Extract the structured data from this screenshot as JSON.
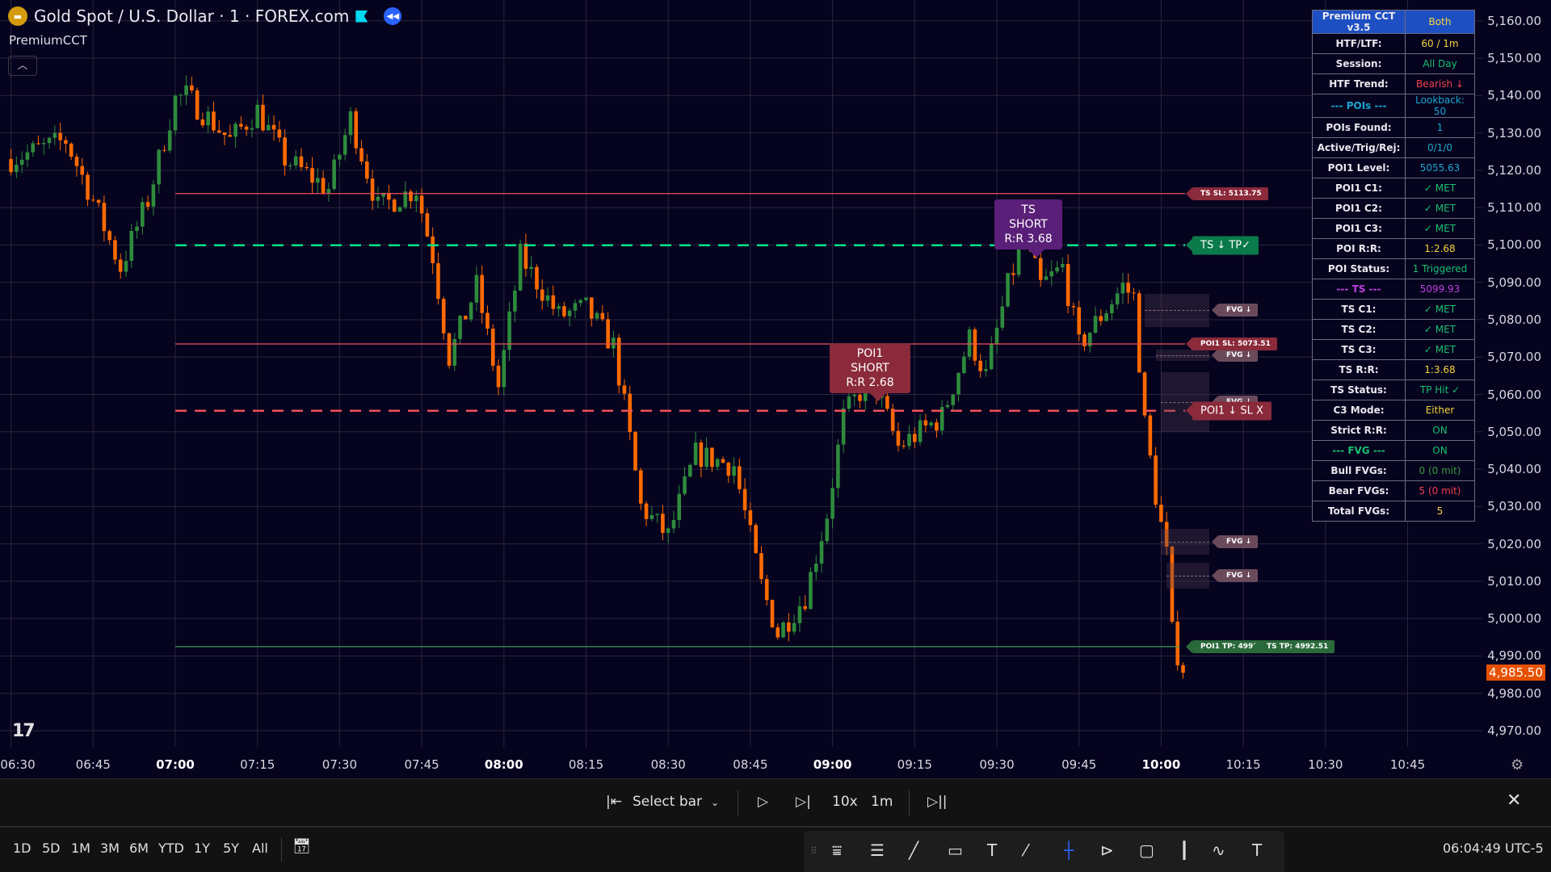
{
  "header": {
    "symbol": "Gold Spot / U.S. Dollar · 1 · FOREX.com",
    "indicator": "PremiumCCT",
    "logo": "TV"
  },
  "colors": {
    "bg": "#06031f",
    "bull": "#2e8b3c",
    "bear": "#ff6a00",
    "grid": "#28263f",
    "green": "#00e38a",
    "red": "#f0505a"
  },
  "price_axis": {
    "labels": [
      "5,160.00",
      "5,150.00",
      "5,140.00",
      "5,130.00",
      "5,120.00",
      "5,110.00",
      "5,100.00",
      "5,090.00",
      "5,080.00",
      "5,070.00",
      "5,060.00",
      "5,050.00",
      "5,040.00",
      "5,030.00",
      "5,020.00",
      "5,010.00",
      "5,000.00",
      "4,990.00",
      "4,980.00",
      "4,970.00"
    ],
    "values": [
      5160,
      5150,
      5140,
      5130,
      5120,
      5110,
      5100,
      5090,
      5080,
      5070,
      5060,
      5050,
      5040,
      5030,
      5020,
      5010,
      5000,
      4990,
      4980,
      4970
    ],
    "current_label": "4,985.50",
    "current": 4985.5
  },
  "time_axis": {
    "labels": [
      "06:30",
      "06:45",
      "07:00",
      "07:15",
      "07:30",
      "07:45",
      "08:00",
      "08:15",
      "08:30",
      "08:45",
      "09:00",
      "09:15",
      "09:30",
      "09:45",
      "10:00",
      "10:15",
      "10:30",
      "10:45"
    ],
    "bold": [
      "07:00",
      "08:00",
      "09:00",
      "10:00"
    ]
  },
  "chart_data": {
    "type": "candlestick",
    "anchors": [
      [
        "06:30",
        5123
      ],
      [
        "06:40",
        5128
      ],
      [
        "06:45",
        5112
      ],
      [
        "06:50",
        5094
      ],
      [
        "06:55",
        5112
      ],
      [
        "07:00",
        5139
      ],
      [
        "07:02",
        5140
      ],
      [
        "07:10",
        5128
      ],
      [
        "07:15",
        5136
      ],
      [
        "07:20",
        5123
      ],
      [
        "07:28",
        5115
      ],
      [
        "07:32",
        5134
      ],
      [
        "07:37",
        5110
      ],
      [
        "07:44",
        5115
      ],
      [
        "07:47",
        5097
      ],
      [
        "07:50",
        5070
      ],
      [
        "07:55",
        5089
      ],
      [
        "07:59",
        5062
      ],
      [
        "08:03",
        5097
      ],
      [
        "08:10",
        5081
      ],
      [
        "08:15",
        5083
      ],
      [
        "08:20",
        5073
      ],
      [
        "08:22",
        5057
      ],
      [
        "08:25",
        5030
      ],
      [
        "08:30",
        5022
      ],
      [
        "08:35",
        5044
      ],
      [
        "08:42",
        5041
      ],
      [
        "08:47",
        5009
      ],
      [
        "08:50",
        4996
      ],
      [
        "08:55",
        5006
      ],
      [
        "08:59",
        5028
      ],
      [
        "09:02",
        5054
      ],
      [
        "09:07",
        5065
      ],
      [
        "09:12",
        5046
      ],
      [
        "09:20",
        5054
      ],
      [
        "09:25",
        5075
      ],
      [
        "09:28",
        5065
      ],
      [
        "09:32",
        5089
      ],
      [
        "09:35",
        5102
      ],
      [
        "09:38",
        5089
      ],
      [
        "09:42",
        5094
      ],
      [
        "09:45",
        5073
      ],
      [
        "09:50",
        5083
      ],
      [
        "09:53",
        5089
      ],
      [
        "09:55",
        5086
      ],
      [
        "09:57",
        5052
      ],
      [
        "09:59",
        5033
      ],
      [
        "10:01",
        5017
      ],
      [
        "10:02",
        4996
      ],
      [
        "10:04",
        4985.5
      ]
    ]
  },
  "levels": [
    {
      "name": "ts-sl-line",
      "label": "TS SL: 5113.75",
      "price": 5113.75,
      "color": "#f0505a",
      "style": "solid",
      "big": false
    },
    {
      "name": "ts-tp-line",
      "label": "TS ↓ TP✓",
      "price": 5099.93,
      "color": "#00e38a",
      "style": "dashed",
      "big": true,
      "tagcolor": "#0a7a4a"
    },
    {
      "name": "poi1-sl-line",
      "label": "POI1 SL: 5073.51",
      "price": 5073.51,
      "color": "#f0505a",
      "style": "solid",
      "big": false
    },
    {
      "name": "poi1-entry-line",
      "label": "POI1 ↓ SL X",
      "price": 5055.63,
      "color": "#f0505a",
      "style": "dashed",
      "big": true,
      "tagcolor": "#8a2a3a"
    }
  ],
  "tp": {
    "price": 4992.51,
    "poi1_label": "POI1 TP: 4992.51",
    "ts_label": "TS TP: 4992.51"
  },
  "fvgs": [
    {
      "from": "09:57",
      "top": 5087,
      "bottom": 5078,
      "label": "FVG ↓"
    },
    {
      "from": "09:59",
      "top": 5072,
      "bottom": 5069,
      "label": "FVG ↓"
    },
    {
      "from": "10:00",
      "top": 5066,
      "bottom": 5050,
      "label": "FVG ↓"
    },
    {
      "from": "10:00",
      "top": 5024,
      "bottom": 5017,
      "label": "FVG ↓"
    },
    {
      "from": "10:01",
      "top": 5015,
      "bottom": 5008,
      "label": "FVG ↓"
    }
  ],
  "callouts": {
    "ts": {
      "line1": "TS SHORT",
      "line2": "R:R 3.68"
    },
    "poi": {
      "line1": "POI1 SHORT",
      "line2": "R:R 2.68"
    }
  },
  "table": {
    "header": [
      "Premium CCT v3.5",
      "Both"
    ],
    "rows": [
      [
        "HTF/LTF:",
        "60 / 1m",
        "#f5d63a"
      ],
      [
        "Session:",
        "All Day",
        "#19c070"
      ],
      [
        "HTF Trend:",
        "Bearish ↓",
        "#f0404a"
      ],
      [
        "--- POIs ---",
        "Lookback: 50",
        "#1aa8d0"
      ],
      [
        "POIs Found:",
        "1",
        "#1aa8d0"
      ],
      [
        "Active/Trig/Rej:",
        "0/1/0",
        "#1aa8d0"
      ],
      [
        "POI1 Level:",
        "5055.63",
        "#1aa8d0"
      ],
      [
        "POI1 C1:",
        "✓ MET",
        "#19c070"
      ],
      [
        "POI1 C2:",
        "✓ MET",
        "#19c070"
      ],
      [
        "POI1 C3:",
        "✓ MET",
        "#19c070"
      ],
      [
        "POI R:R:",
        "1:2.68",
        "#f5d63a"
      ],
      [
        "POI Status:",
        "1 Triggered",
        "#19c070"
      ],
      [
        "--- TS ---",
        "5099.93",
        "#c040e0"
      ],
      [
        "TS C1:",
        "✓ MET",
        "#19c070"
      ],
      [
        "TS C2:",
        "✓ MET",
        "#19c070"
      ],
      [
        "TS C3:",
        "✓ MET",
        "#19c070"
      ],
      [
        "TS R:R:",
        "1:3.68",
        "#f5d63a"
      ],
      [
        "TS Status:",
        "TP Hit ✓",
        "#19c070"
      ],
      [
        "C3 Mode:",
        "Either",
        "#f5d63a"
      ],
      [
        "Strict R:R:",
        "ON",
        "#19c070"
      ],
      [
        "--- FVG ---",
        "ON",
        "#19c070"
      ],
      [
        "Bull FVGs:",
        "0 (0 mit)",
        "#3a9a40"
      ],
      [
        "Bear FVGs:",
        "5 (0 mit)",
        "#f0404a"
      ],
      [
        "Total FVGs:",
        "5",
        "#f5d63a"
      ]
    ]
  },
  "replay": {
    "select_bar": "Select bar",
    "speed": "10x",
    "interval": "1m"
  },
  "timeframes": [
    "1D",
    "5D",
    "1M",
    "3M",
    "6M",
    "YTD",
    "1Y",
    "5Y",
    "All"
  ],
  "clock": "06:04:49 UTC-5"
}
